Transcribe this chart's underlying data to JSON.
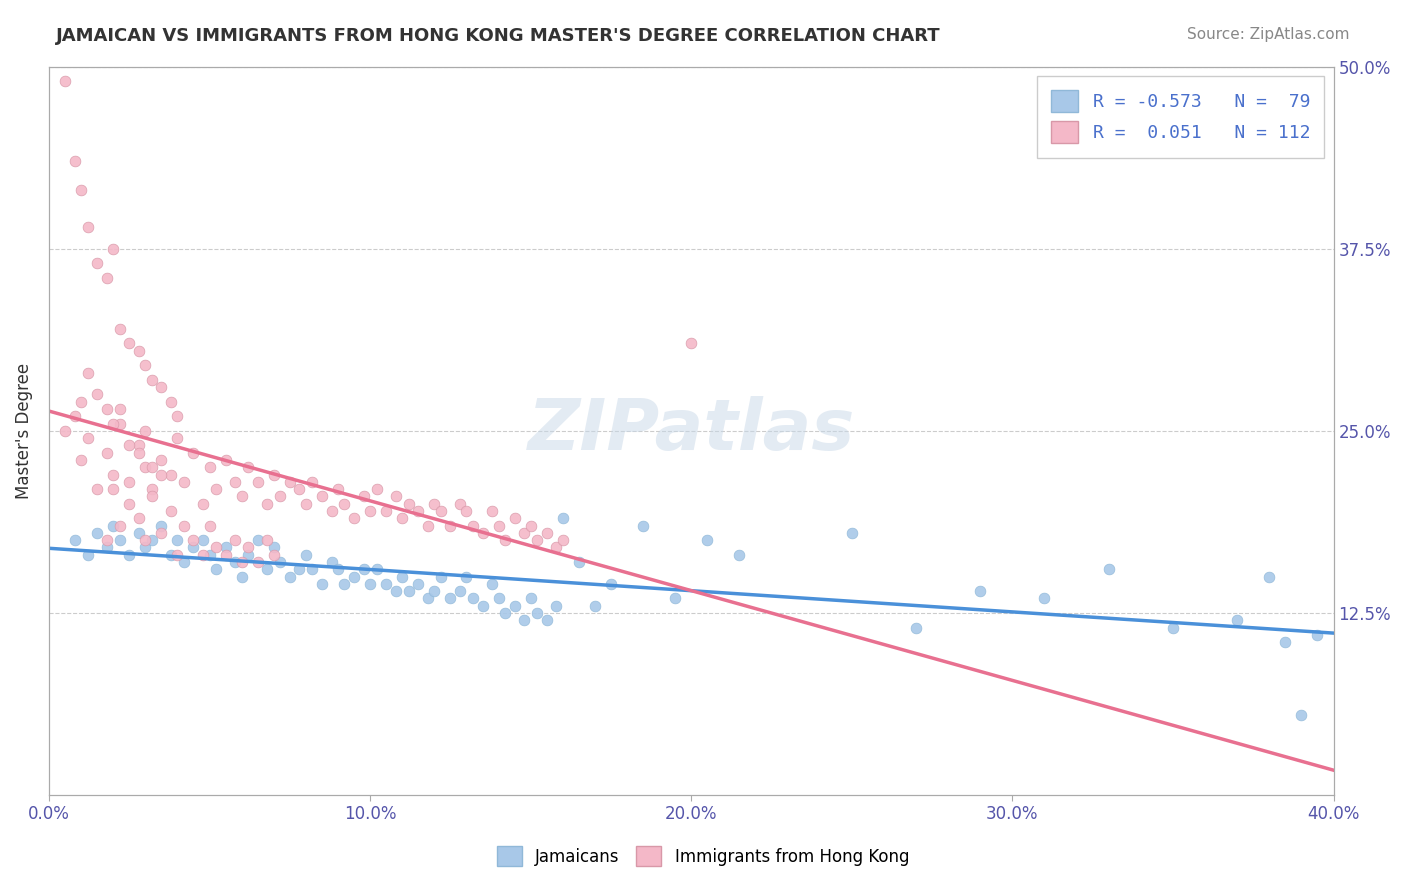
{
  "title": "JAMAICAN VS IMMIGRANTS FROM HONG KONG MASTER'S DEGREE CORRELATION CHART",
  "source_text": "Source: ZipAtlas.com",
  "xlabel": "",
  "ylabel": "Master's Degree",
  "xlim": [
    0.0,
    0.4
  ],
  "ylim": [
    0.0,
    0.5
  ],
  "xtick_labels": [
    "0.0%",
    "10.0%",
    "20.0%",
    "30.0%",
    "40.0%"
  ],
  "xtick_vals": [
    0.0,
    0.1,
    0.2,
    0.3,
    0.4
  ],
  "ytick_labels": [
    "12.5%",
    "25.0%",
    "37.5%",
    "50.0%"
  ],
  "ytick_vals": [
    0.125,
    0.25,
    0.375,
    0.5
  ],
  "blue_R": -0.573,
  "blue_N": 79,
  "pink_R": 0.051,
  "pink_N": 112,
  "blue_color": "#a8c8e8",
  "pink_color": "#f4b8c8",
  "blue_line_color": "#4a90d9",
  "pink_line_color": "#e87090",
  "legend_R_label1": "R = -0.573",
  "legend_N_label1": "N =  79",
  "legend_R_label2": "R =  0.051",
  "legend_N_label2": "N = 112",
  "watermark": "ZIPatlas",
  "blue_scatter_x": [
    0.008,
    0.012,
    0.015,
    0.018,
    0.02,
    0.022,
    0.025,
    0.028,
    0.03,
    0.032,
    0.035,
    0.038,
    0.04,
    0.042,
    0.045,
    0.048,
    0.05,
    0.052,
    0.055,
    0.058,
    0.06,
    0.062,
    0.065,
    0.068,
    0.07,
    0.072,
    0.075,
    0.078,
    0.08,
    0.082,
    0.085,
    0.088,
    0.09,
    0.092,
    0.095,
    0.098,
    0.1,
    0.102,
    0.105,
    0.108,
    0.11,
    0.112,
    0.115,
    0.118,
    0.12,
    0.122,
    0.125,
    0.128,
    0.13,
    0.132,
    0.135,
    0.138,
    0.14,
    0.142,
    0.145,
    0.148,
    0.15,
    0.152,
    0.155,
    0.158,
    0.16,
    0.165,
    0.17,
    0.175,
    0.185,
    0.195,
    0.205,
    0.215,
    0.25,
    0.27,
    0.29,
    0.31,
    0.33,
    0.35,
    0.37,
    0.38,
    0.385,
    0.39,
    0.395
  ],
  "blue_scatter_y": [
    0.175,
    0.165,
    0.18,
    0.17,
    0.185,
    0.175,
    0.165,
    0.18,
    0.17,
    0.175,
    0.185,
    0.165,
    0.175,
    0.16,
    0.17,
    0.175,
    0.165,
    0.155,
    0.17,
    0.16,
    0.15,
    0.165,
    0.175,
    0.155,
    0.17,
    0.16,
    0.15,
    0.155,
    0.165,
    0.155,
    0.145,
    0.16,
    0.155,
    0.145,
    0.15,
    0.155,
    0.145,
    0.155,
    0.145,
    0.14,
    0.15,
    0.14,
    0.145,
    0.135,
    0.14,
    0.15,
    0.135,
    0.14,
    0.15,
    0.135,
    0.13,
    0.145,
    0.135,
    0.125,
    0.13,
    0.12,
    0.135,
    0.125,
    0.12,
    0.13,
    0.19,
    0.16,
    0.13,
    0.145,
    0.185,
    0.135,
    0.175,
    0.165,
    0.18,
    0.115,
    0.14,
    0.135,
    0.155,
    0.115,
    0.12,
    0.15,
    0.105,
    0.055,
    0.11
  ],
  "pink_scatter_x": [
    0.005,
    0.008,
    0.01,
    0.012,
    0.015,
    0.018,
    0.02,
    0.022,
    0.025,
    0.028,
    0.03,
    0.032,
    0.035,
    0.038,
    0.04,
    0.042,
    0.045,
    0.048,
    0.05,
    0.052,
    0.055,
    0.058,
    0.06,
    0.062,
    0.065,
    0.068,
    0.07,
    0.072,
    0.075,
    0.078,
    0.08,
    0.082,
    0.085,
    0.088,
    0.09,
    0.092,
    0.095,
    0.098,
    0.1,
    0.102,
    0.105,
    0.108,
    0.11,
    0.112,
    0.115,
    0.118,
    0.12,
    0.122,
    0.125,
    0.128,
    0.13,
    0.132,
    0.135,
    0.138,
    0.14,
    0.142,
    0.145,
    0.148,
    0.15,
    0.152,
    0.155,
    0.158,
    0.16,
    0.005,
    0.008,
    0.01,
    0.012,
    0.015,
    0.018,
    0.02,
    0.022,
    0.025,
    0.028,
    0.03,
    0.032,
    0.035,
    0.038,
    0.04,
    0.01,
    0.015,
    0.018,
    0.012,
    0.02,
    0.022,
    0.025,
    0.028,
    0.03,
    0.032,
    0.035,
    0.018,
    0.02,
    0.022,
    0.025,
    0.028,
    0.03,
    0.032,
    0.035,
    0.038,
    0.04,
    0.042,
    0.045,
    0.048,
    0.05,
    0.052,
    0.055,
    0.058,
    0.06,
    0.062,
    0.065,
    0.068,
    0.07,
    0.2
  ],
  "pink_scatter_y": [
    0.25,
    0.26,
    0.23,
    0.245,
    0.21,
    0.235,
    0.22,
    0.255,
    0.215,
    0.24,
    0.225,
    0.21,
    0.23,
    0.22,
    0.245,
    0.215,
    0.235,
    0.2,
    0.225,
    0.21,
    0.23,
    0.215,
    0.205,
    0.225,
    0.215,
    0.2,
    0.22,
    0.205,
    0.215,
    0.21,
    0.2,
    0.215,
    0.205,
    0.195,
    0.21,
    0.2,
    0.19,
    0.205,
    0.195,
    0.21,
    0.195,
    0.205,
    0.19,
    0.2,
    0.195,
    0.185,
    0.2,
    0.195,
    0.185,
    0.2,
    0.195,
    0.185,
    0.18,
    0.195,
    0.185,
    0.175,
    0.19,
    0.18,
    0.185,
    0.175,
    0.18,
    0.17,
    0.175,
    0.49,
    0.435,
    0.415,
    0.39,
    0.365,
    0.355,
    0.375,
    0.32,
    0.31,
    0.305,
    0.295,
    0.285,
    0.28,
    0.27,
    0.26,
    0.27,
    0.275,
    0.265,
    0.29,
    0.255,
    0.265,
    0.24,
    0.235,
    0.25,
    0.225,
    0.22,
    0.175,
    0.21,
    0.185,
    0.2,
    0.19,
    0.175,
    0.205,
    0.18,
    0.195,
    0.165,
    0.185,
    0.175,
    0.165,
    0.185,
    0.17,
    0.165,
    0.175,
    0.16,
    0.17,
    0.16,
    0.175,
    0.165,
    0.31
  ]
}
